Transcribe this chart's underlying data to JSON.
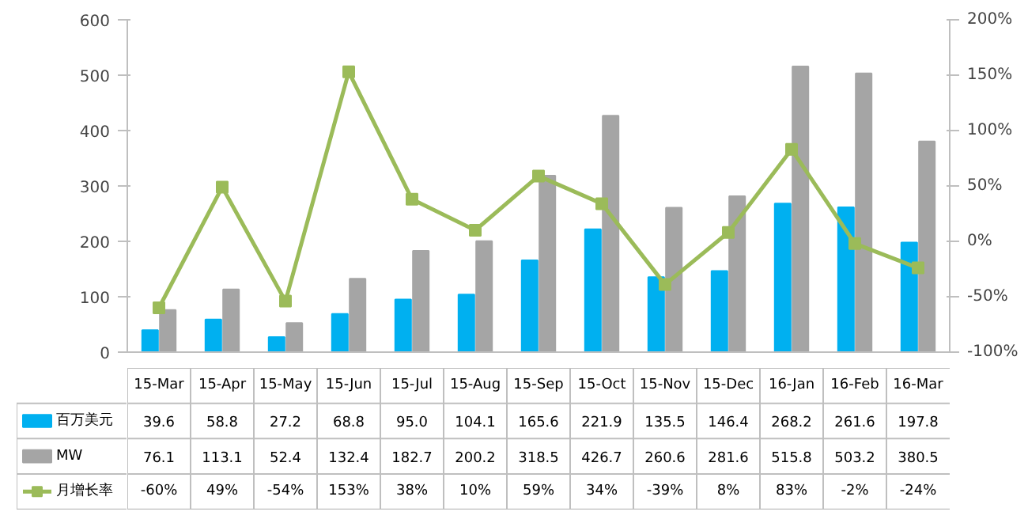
{
  "chart_data": {
    "type": "bar",
    "categories": [
      "15-Mar",
      "15-Apr",
      "15-May",
      "15-Jun",
      "15-Jul",
      "15-Aug",
      "15-Sep",
      "15-Oct",
      "15-Nov",
      "15-Dec",
      "16-Jan",
      "16-Feb",
      "16-Mar"
    ],
    "ylim": [
      0,
      600
    ],
    "yticks": [
      0,
      100,
      200,
      300,
      400,
      500,
      600
    ],
    "y2lim": [
      -100,
      200
    ],
    "y2ticks": [
      {
        "value": -100,
        "label": "-100%"
      },
      {
        "value": -50,
        "label": "-50%"
      },
      {
        "value": 0,
        "label": "0%"
      },
      {
        "value": 50,
        "label": "50%"
      },
      {
        "value": 100,
        "label": "100%"
      },
      {
        "value": 150,
        "label": "150%"
      },
      {
        "value": 200,
        "label": "200%"
      }
    ],
    "grid": false,
    "legend": "bottom",
    "marker": "square",
    "series": [
      {
        "name": "百万美元",
        "color": "#00b0f0",
        "values": [
          39.6,
          58.8,
          27.2,
          68.8,
          95.0,
          104.1,
          165.6,
          221.9,
          135.5,
          146.4,
          268.2,
          261.6,
          197.8
        ],
        "value_labels": [
          "39.6",
          "58.8",
          "27.2",
          "68.8",
          "95.0",
          "104.1",
          "165.6",
          "221.9",
          "135.5",
          "146.4",
          "268.2",
          "261.6",
          "197.8"
        ]
      },
      {
        "name": "MW",
        "color": "#a5a5a5",
        "values": [
          76.1,
          113.1,
          52.4,
          132.4,
          182.7,
          200.2,
          318.5,
          426.7,
          260.6,
          281.6,
          515.8,
          503.2,
          380.5
        ],
        "value_labels": [
          "76.1",
          "113.1",
          "52.4",
          "132.4",
          "182.7",
          "200.2",
          "318.5",
          "426.7",
          "260.6",
          "281.6",
          "515.8",
          "503.2",
          "380.5"
        ]
      },
      {
        "name": "月增长率",
        "type": "line",
        "axis": "y2",
        "color": "#9bbb59",
        "values": [
          -60,
          49,
          -54,
          153,
          38,
          10,
          59,
          34,
          -39,
          8,
          83,
          -2,
          -24
        ],
        "value_labels": [
          "-60%",
          "49%",
          "-54%",
          "153%",
          "38%",
          "10%",
          "59%",
          "34%",
          "-39%",
          "8%",
          "83%",
          "-2%",
          "-24%"
        ]
      }
    ]
  }
}
